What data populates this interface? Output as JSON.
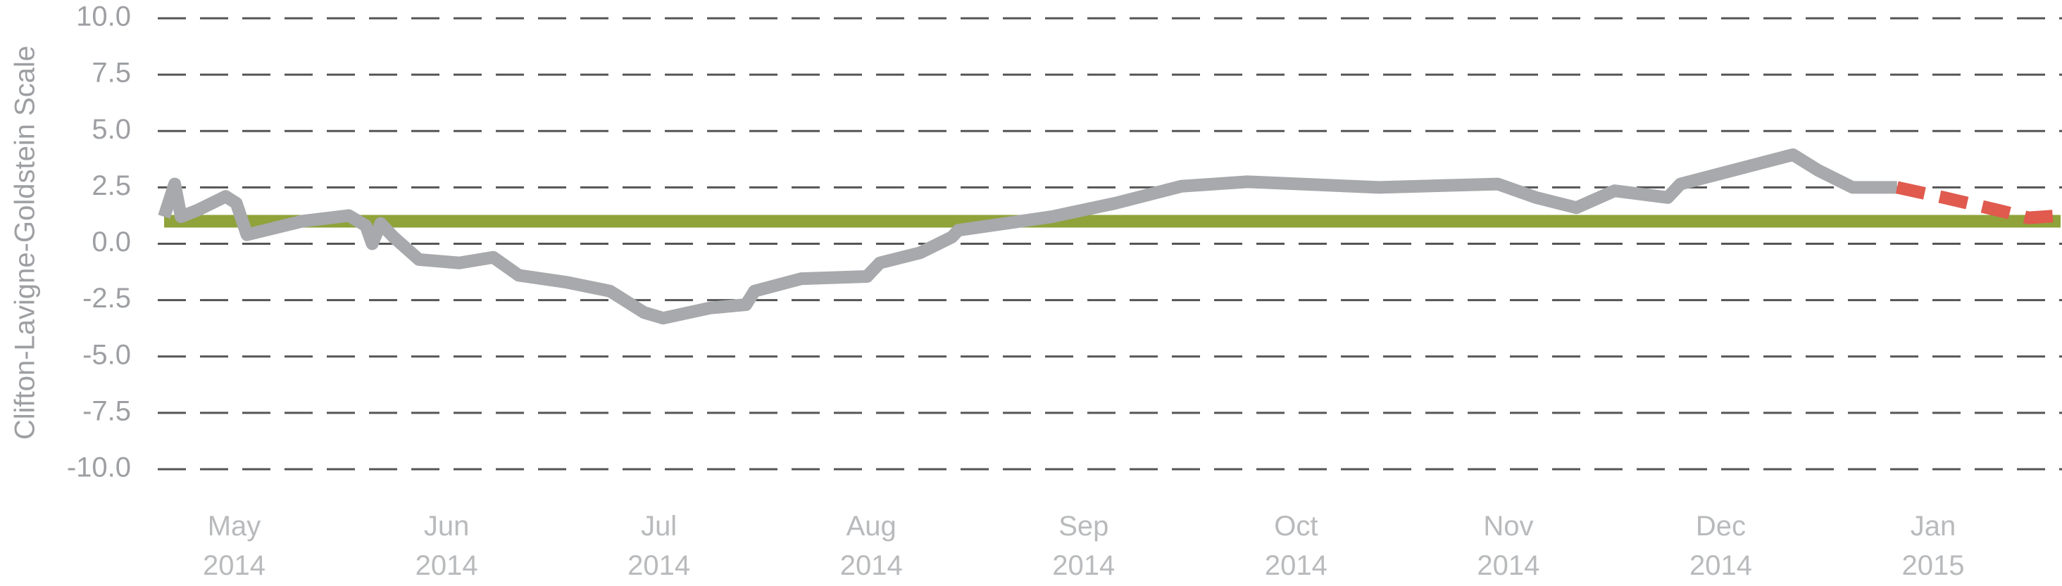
{
  "chart_data": {
    "type": "line",
    "y_label": "Clifton-Lavigne-Goldstein Scale",
    "ylim": [
      -10,
      10
    ],
    "yticks": [
      {
        "value": 10,
        "label": "10.0"
      },
      {
        "value": 7.5,
        "label": "7.5"
      },
      {
        "value": 5,
        "label": "5.0"
      },
      {
        "value": 2.5,
        "label": "2.5"
      },
      {
        "value": 0,
        "label": "0.0"
      },
      {
        "value": -2.5,
        "label": "-2.5"
      },
      {
        "value": -5,
        "label": "-5.0"
      },
      {
        "value": -7.5,
        "label": "-7.5"
      },
      {
        "value": -10,
        "label": "-10.0"
      }
    ],
    "xlim": [
      -0.33,
      8.6
    ],
    "xticks": [
      {
        "value": 0,
        "label": "May\n2014"
      },
      {
        "value": 1,
        "label": "Jun\n2014"
      },
      {
        "value": 2,
        "label": "Jul\n2014"
      },
      {
        "value": 3,
        "label": "Aug\n2014"
      },
      {
        "value": 4,
        "label": "Sep\n2014"
      },
      {
        "value": 5,
        "label": "Oct\n2014"
      },
      {
        "value": 6,
        "label": "Nov\n2014"
      },
      {
        "value": 7,
        "label": "Dec\n2014"
      },
      {
        "value": 8,
        "label": "Jan\n2015"
      }
    ],
    "grid": true,
    "series": [
      {
        "color": "#8fa33a",
        "dashed": false,
        "x": [
          -0.33,
          8.6
        ],
        "values": [
          1.0,
          1.0
        ]
      },
      {
        "color": "#a7a9ac",
        "dashed": false,
        "x": [
          -0.33,
          -0.28,
          -0.25,
          -0.17,
          -0.04,
          0.01,
          0.06,
          0.32,
          0.54,
          0.62,
          0.65,
          0.69,
          0.75,
          0.87,
          1.06,
          1.22,
          1.34,
          1.56,
          1.77,
          1.93,
          2.02,
          2.24,
          2.41,
          2.45,
          2.67,
          2.98,
          3.04,
          3.23,
          3.38,
          3.41,
          3.85,
          4.15,
          4.46,
          4.77,
          5.39,
          5.95,
          6.13,
          6.32,
          6.5,
          6.75,
          6.81,
          7.34,
          7.46,
          7.62,
          7.83
        ],
        "values": [
          1.2,
          2.65,
          1.2,
          1.5,
          2.1,
          1.8,
          0.4,
          1.0,
          1.25,
          0.8,
          0.0,
          0.9,
          0.3,
          -0.7,
          -0.85,
          -0.6,
          -1.4,
          -1.7,
          -2.1,
          -3.05,
          -3.3,
          -2.85,
          -2.7,
          -2.1,
          -1.55,
          -1.45,
          -0.85,
          -0.4,
          0.3,
          0.6,
          1.2,
          1.8,
          2.55,
          2.75,
          2.5,
          2.65,
          2.05,
          1.6,
          2.35,
          2.05,
          2.65,
          3.95,
          3.25,
          2.5,
          2.5
        ]
      },
      {
        "color": "#e05a4e",
        "dashed": true,
        "x": [
          7.83,
          8.05,
          8.3,
          8.45,
          8.6
        ],
        "values": [
          2.5,
          2.05,
          1.5,
          1.15,
          1.25
        ]
      }
    ]
  }
}
